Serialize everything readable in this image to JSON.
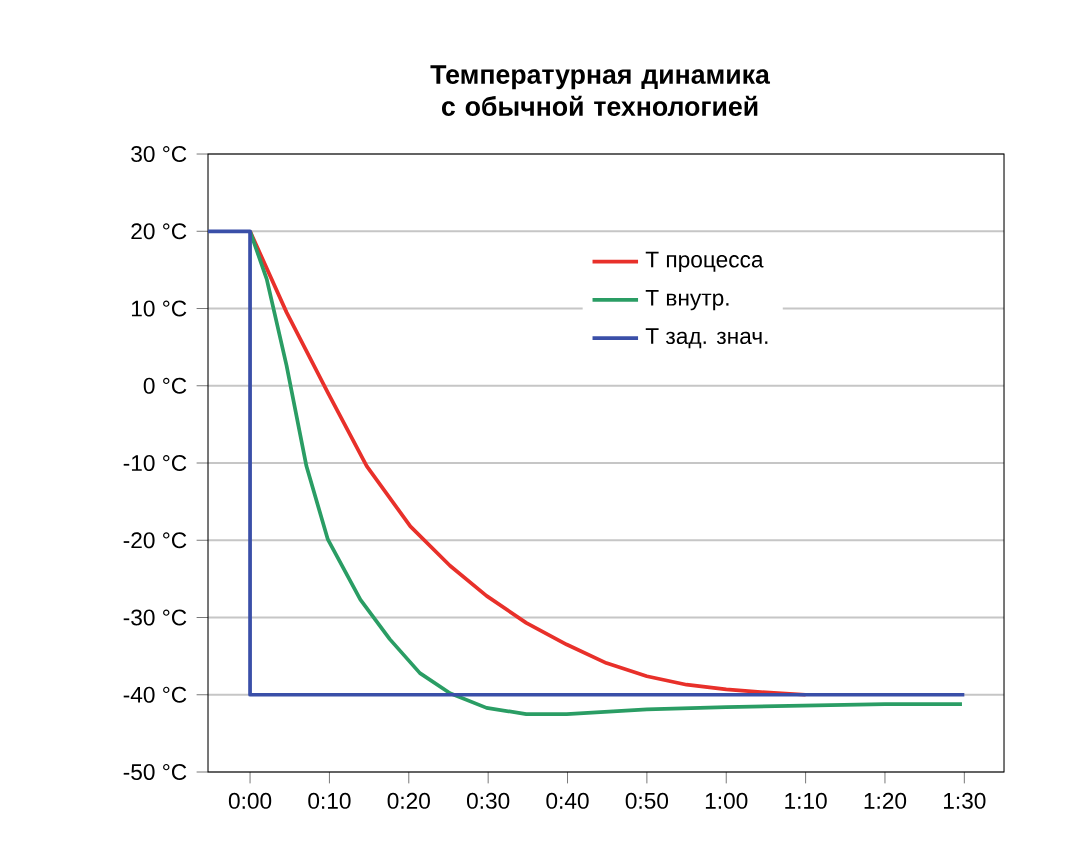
{
  "chart_data": {
    "type": "line",
    "title": "Температурная динамика с обычной технологией",
    "xlim": [
      -5.3,
      95
    ],
    "ylim": [
      -50,
      30
    ],
    "xticks": [
      {
        "value": 0,
        "label": "0:00"
      },
      {
        "value": 10,
        "label": "0:10"
      },
      {
        "value": 20,
        "label": "0:20"
      },
      {
        "value": 30,
        "label": "0:30"
      },
      {
        "value": 40,
        "label": "0:40"
      },
      {
        "value": 50,
        "label": "0:50"
      },
      {
        "value": 60,
        "label": "1:00"
      },
      {
        "value": 70,
        "label": "1:10"
      },
      {
        "value": 80,
        "label": "1:20"
      },
      {
        "value": 90,
        "label": "1:30"
      }
    ],
    "yticks": [
      {
        "value": -50,
        "label": "-50 °C"
      },
      {
        "value": -40,
        "label": "-40 °C"
      },
      {
        "value": -30,
        "label": "-30 °C"
      },
      {
        "value": -20,
        "label": "-20 °C"
      },
      {
        "value": -10,
        "label": "-10 °C"
      },
      {
        "value": 0,
        "label": "0 °C"
      },
      {
        "value": 10,
        "label": "10 °C"
      },
      {
        "value": 20,
        "label": "20 °C"
      },
      {
        "value": 30,
        "label": "30 °C"
      }
    ],
    "grid": "y",
    "legend": "top right",
    "line_style": "solid",
    "marker": "none",
    "series": [
      {
        "name": "T процесса",
        "color": "#e8302a",
        "x": [
          0,
          4.6,
          9.8,
          14.7,
          20.2,
          25.2,
          29.8,
          34.8,
          39.9,
          44.9,
          50,
          55,
          60,
          65,
          70
        ],
        "values": [
          20,
          9.5,
          -0.9,
          -10.4,
          -18.2,
          -23.3,
          -27.2,
          -30.7,
          -33.5,
          -35.9,
          -37.6,
          -38.7,
          -39.3,
          -39.7,
          -40
        ]
      },
      {
        "name": "T внутр.",
        "color": "#2a9d64",
        "x": [
          0,
          2.1,
          4.6,
          7.1,
          9.8,
          13.9,
          17.6,
          21.4,
          25.2,
          29.8,
          34.8,
          39.9,
          50,
          60,
          70,
          80,
          89.7
        ],
        "values": [
          20,
          13.8,
          2.6,
          -10.4,
          -19.9,
          -27.7,
          -32.8,
          -37.2,
          -39.8,
          -41.7,
          -42.5,
          -42.5,
          -41.9,
          -41.6,
          -41.4,
          -41.2,
          -41.2
        ]
      },
      {
        "name": "T зад. знач.",
        "color": "#3a4fa8",
        "x": [
          -5.3,
          0,
          0,
          90
        ],
        "values": [
          20,
          20,
          -40,
          -40
        ]
      }
    ]
  }
}
